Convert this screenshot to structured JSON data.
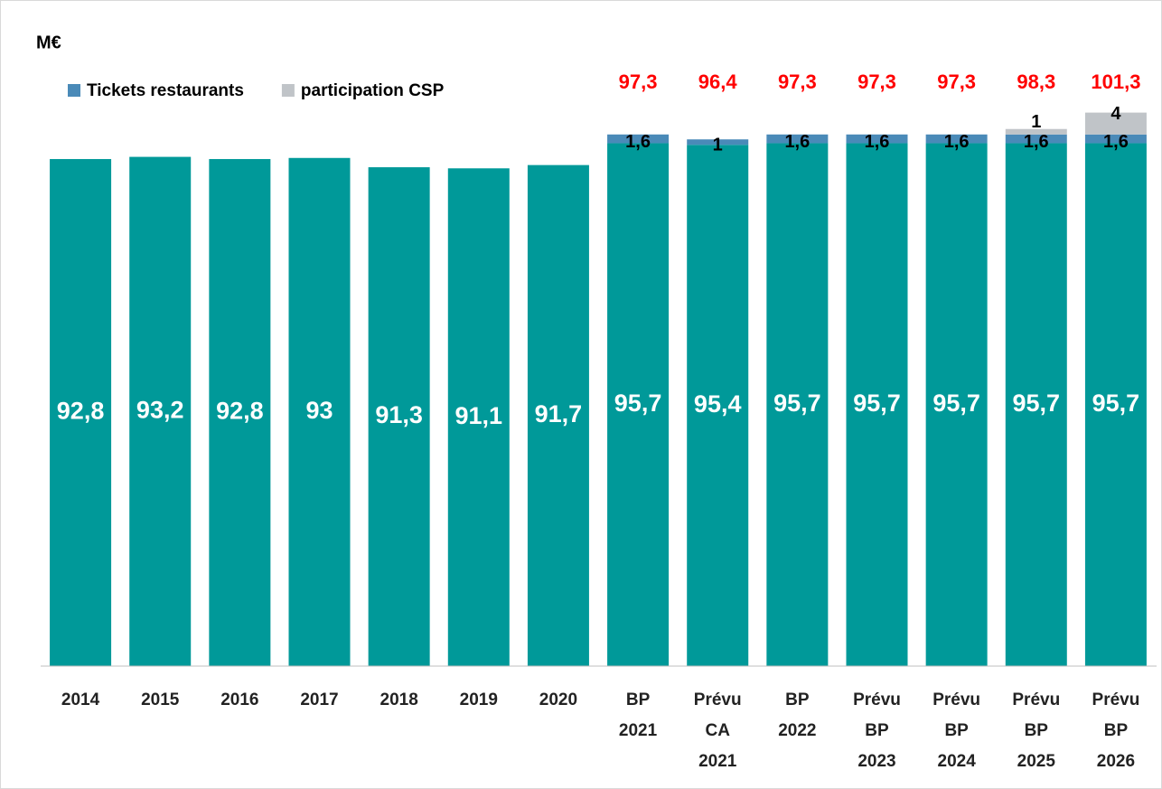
{
  "chart_data": {
    "type": "stacked_bar",
    "unit_label": "M€",
    "categories": [
      [
        "2014"
      ],
      [
        "2015"
      ],
      [
        "2016"
      ],
      [
        "2017"
      ],
      [
        "2018"
      ],
      [
        "2019"
      ],
      [
        "2020"
      ],
      [
        "BP",
        "2021"
      ],
      [
        "Prévu",
        "CA",
        "2021"
      ],
      [
        "BP",
        "2022"
      ],
      [
        "Prévu",
        "BP",
        "2023"
      ],
      [
        "Prévu",
        "BP",
        "2024"
      ],
      [
        "Prévu",
        "BP",
        "2025"
      ],
      [
        "Prévu",
        "BP",
        "2026"
      ]
    ],
    "series": [
      {
        "color": "#009999",
        "label_color": "#ffffff",
        "values": [
          92.8,
          93.2,
          92.8,
          93,
          91.3,
          91.1,
          91.7,
          95.7,
          95.4,
          95.7,
          95.7,
          95.7,
          95.7,
          95.7
        ],
        "value_labels": [
          "92,8",
          "93,2",
          "92,8",
          "93",
          "91,3",
          "91,1",
          "91,7",
          "95,7",
          "95,4",
          "95,7",
          "95,7",
          "95,7",
          "95,7",
          "95,7"
        ]
      },
      {
        "name": "Tickets restaurants",
        "color": "#4a8ab8",
        "label_color": "#000000",
        "values": [
          null,
          null,
          null,
          null,
          null,
          null,
          null,
          1.6,
          1,
          1.6,
          1.6,
          1.6,
          1.6,
          1.6
        ],
        "value_labels": [
          null,
          null,
          null,
          null,
          null,
          null,
          null,
          "1,6",
          "1",
          "1,6",
          "1,6",
          "1,6",
          "1,6",
          "1,6"
        ]
      },
      {
        "name": "participation CSP",
        "color": "#c0c4c8",
        "label_color": "#000000",
        "values": [
          null,
          null,
          null,
          null,
          null,
          null,
          null,
          null,
          null,
          null,
          null,
          null,
          1,
          4
        ],
        "value_labels": [
          null,
          null,
          null,
          null,
          null,
          null,
          null,
          null,
          null,
          null,
          null,
          null,
          "1",
          "4"
        ]
      }
    ],
    "totals": {
      "color": "#ff0000",
      "values": [
        null,
        null,
        null,
        null,
        null,
        null,
        null,
        97.3,
        96.4,
        97.3,
        97.3,
        97.3,
        98.3,
        101.3
      ],
      "value_labels": [
        null,
        null,
        null,
        null,
        null,
        null,
        null,
        "97,3",
        "96,4",
        "97,3",
        "97,3",
        "97,3",
        "98,3",
        "101,3"
      ]
    },
    "ylim": [
      0,
      110
    ],
    "legend": "upper left"
  }
}
